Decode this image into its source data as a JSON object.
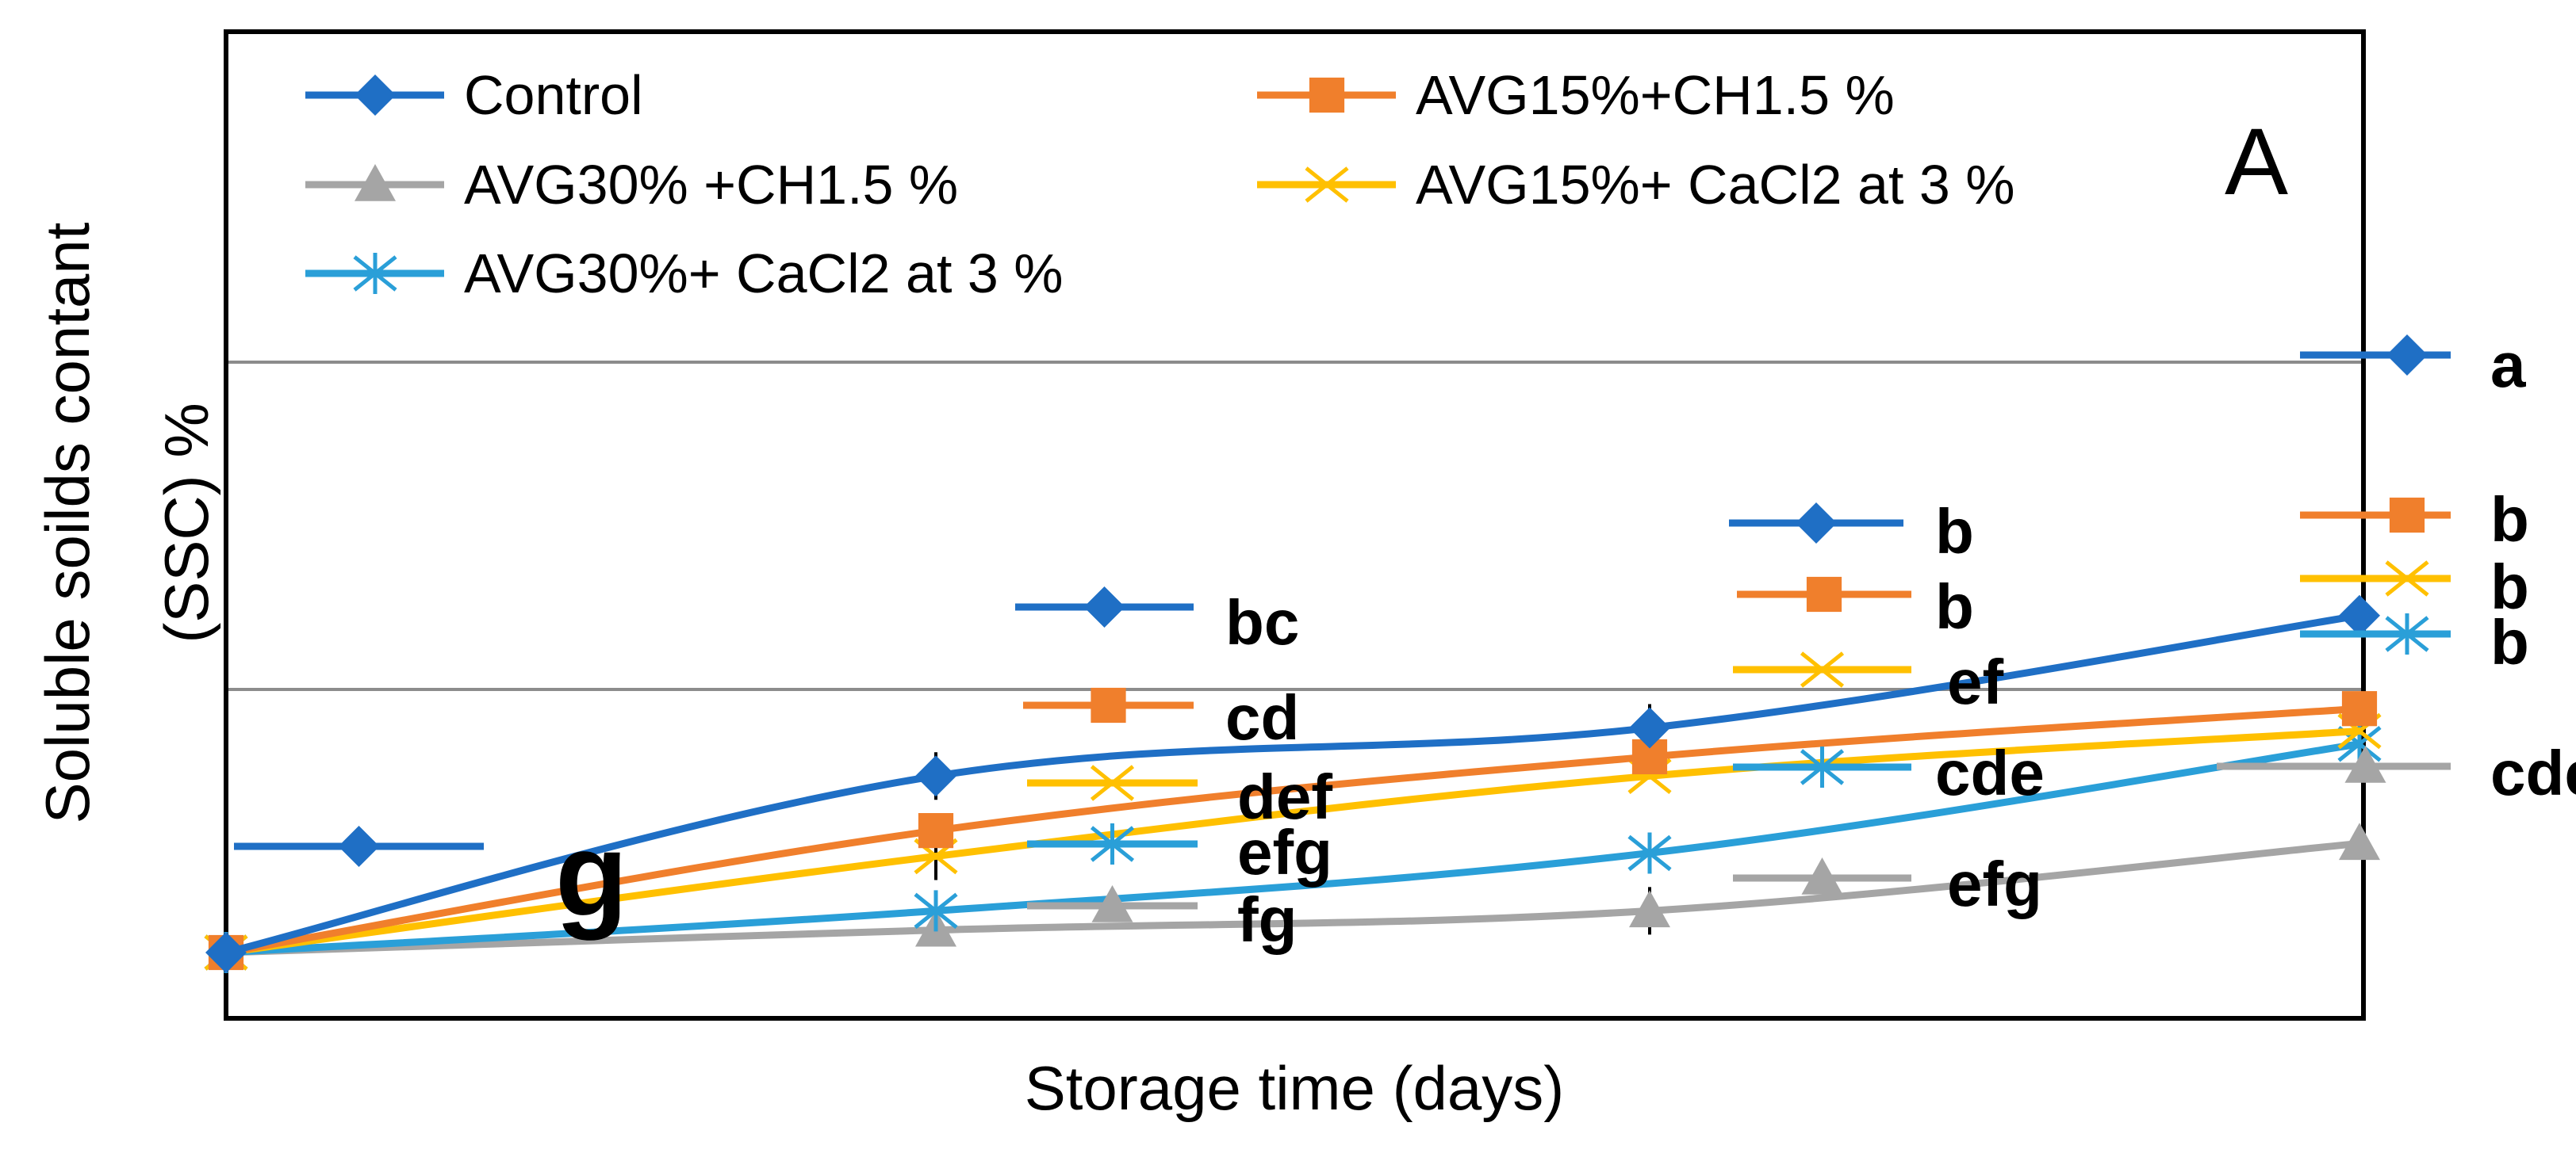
{
  "chart_data": {
    "type": "line",
    "panel_letter": "A",
    "xlabel": "Storage time (days)",
    "ylabel_line1": "Soluble soilds contant",
    "ylabel_line2": "(SSC) %",
    "x": [
      0,
      1,
      2,
      3
    ],
    "ylim": [
      0,
      18
    ],
    "grid": "horizontal",
    "legend_position": "top-inside",
    "series": [
      {
        "name": "Control",
        "color": "#1f6fc5",
        "marker": "diamond",
        "values": [
          0,
          5.5,
          7.0,
          10.5
        ]
      },
      {
        "name": "AVG15%+CH1.5 %",
        "color": "#f07f2c",
        "marker": "square",
        "values": [
          0,
          3.8,
          6.1,
          7.6
        ]
      },
      {
        "name": "AVG30% +CH1.5 %",
        "color": "#a5a5a5",
        "marker": "triangle",
        "values": [
          0,
          0.7,
          1.3,
          3.4
        ]
      },
      {
        "name": "AVG15%+ CaCl2  at 3 %",
        "color": "#ffc000",
        "marker": "x",
        "values": [
          0,
          3.0,
          5.5,
          6.9
        ]
      },
      {
        "name": "AVG30%+  CaCl2  at 3 %",
        "color": "#2a9fd8",
        "marker": "asterisk",
        "values": [
          0,
          1.3,
          3.1,
          6.5
        ]
      }
    ],
    "significance_labels": [
      {
        "text": "g",
        "series": 0,
        "x": 0,
        "color": "#ff0000"
      },
      {
        "text": "bc",
        "series": 0,
        "x": 1
      },
      {
        "text": "cd",
        "series": 1,
        "x": 1
      },
      {
        "text": "def",
        "series": 3,
        "x": 1
      },
      {
        "text": "efg",
        "series": 4,
        "x": 1
      },
      {
        "text": "fg",
        "series": 2,
        "x": 1
      },
      {
        "text": "b",
        "series": 0,
        "x": 2
      },
      {
        "text": "b",
        "series": 1,
        "x": 2
      },
      {
        "text": "ef",
        "series": 3,
        "x": 2
      },
      {
        "text": "cde",
        "series": 4,
        "x": 2
      },
      {
        "text": "efg",
        "series": 2,
        "x": 2
      },
      {
        "text": "a",
        "series": 0,
        "x": 3
      },
      {
        "text": "b",
        "series": 1,
        "x": 3
      },
      {
        "text": "b",
        "series": 3,
        "x": 3
      },
      {
        "text": "b",
        "series": 4,
        "x": 3
      },
      {
        "text": "cde",
        "series": 2,
        "x": 3
      }
    ]
  }
}
